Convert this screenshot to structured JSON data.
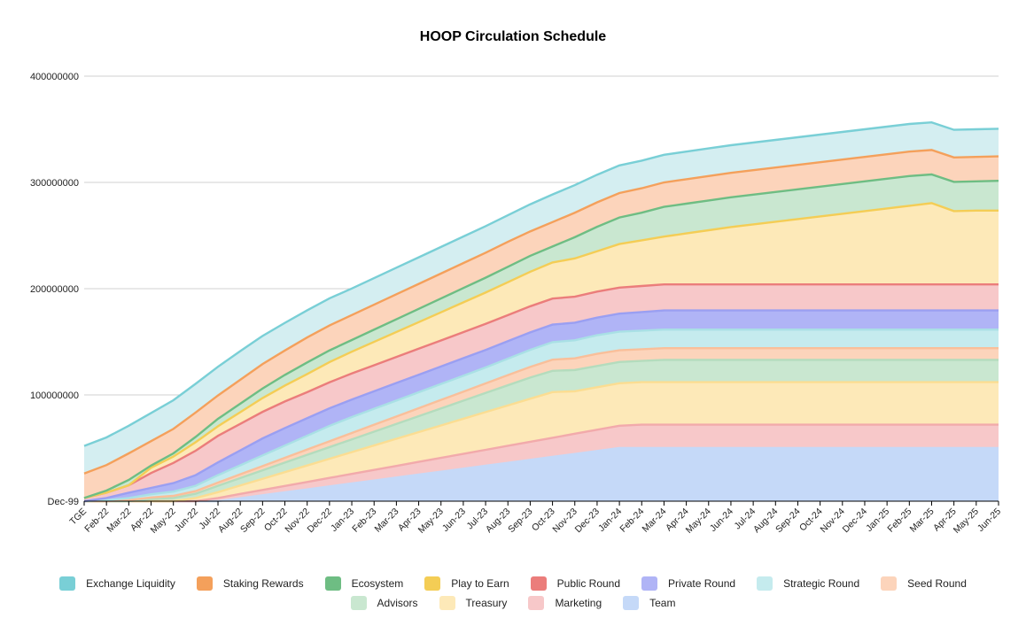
{
  "chart_data": {
    "type": "area",
    "stacked": true,
    "title": "HOOP Circulation Schedule",
    "xlabel": "",
    "ylabel": "",
    "ylim": [
      0,
      400000000
    ],
    "yticks": [
      "Dec-99",
      "100000000",
      "200000000",
      "300000000",
      "400000000"
    ],
    "grid": true,
    "legend_position": "bottom",
    "categories": [
      "TGE",
      "Feb-22",
      "Mar-22",
      "Apr-22",
      "May-22",
      "Jun-22",
      "Jul-22",
      "Aug-22",
      "Sep-22",
      "Oct-22",
      "Nov-22",
      "Dec-22",
      "Jan-23",
      "Feb-23",
      "Mar-23",
      "Apr-23",
      "May-23",
      "Jun-23",
      "Jul-23",
      "Aug-23",
      "Sep-23",
      "Oct-23",
      "Nov-23",
      "Dec-23",
      "Jan-24",
      "Feb-24",
      "Mar-24",
      "Apr-24",
      "May-24",
      "Jun-24",
      "Jul-24",
      "Aug-24",
      "Sep-24",
      "Oct-24",
      "Nov-24",
      "Dec-24",
      "Jan-25",
      "Feb-25",
      "Mar-25",
      "Apr-25",
      "May-25",
      "Jun-25"
    ],
    "series": [
      {
        "name": "Team",
        "color": "#c5d9f8",
        "line": "#c5d9f8",
        "values": [
          0,
          0,
          0,
          0,
          0,
          0,
          0,
          2778000,
          5556000,
          8333000,
          11111000,
          13889000,
          16667000,
          19444000,
          22222000,
          25000000,
          27778000,
          30556000,
          33333000,
          36111000,
          38889000,
          41667000,
          44444000,
          47222000,
          50000000,
          50000000,
          50000000,
          50000000,
          50000000,
          50000000,
          50000000,
          50000000,
          50000000,
          50000000,
          50000000,
          50000000,
          50000000,
          50000000,
          50000000,
          50000000,
          50000000,
          50000000
        ]
      },
      {
        "name": "Marketing",
        "color": "#f7c8c9",
        "line": "#f2aaab",
        "values": [
          0,
          0,
          0,
          0,
          0,
          0,
          3000000,
          4000000,
          5000000,
          6000000,
          7000000,
          8000000,
          9000000,
          10000000,
          11000000,
          12000000,
          13000000,
          14000000,
          15000000,
          16000000,
          17000000,
          18000000,
          19000000,
          20000000,
          21000000,
          22000000,
          22000000,
          22000000,
          22000000,
          22000000,
          22000000,
          22000000,
          22000000,
          22000000,
          22000000,
          22000000,
          22000000,
          22000000,
          22000000,
          22000000,
          22000000,
          22000000
        ]
      },
      {
        "name": "Treasury",
        "color": "#fde9b8",
        "line": "#fbdd92",
        "values": [
          0,
          0,
          0,
          0,
          0,
          3000000,
          5500000,
          8000000,
          10500000,
          13000000,
          15500000,
          18000000,
          20500000,
          23000000,
          25500000,
          28000000,
          30500000,
          33000000,
          35500000,
          38000000,
          40500000,
          43000000,
          40000000,
          40000000,
          40000000,
          40000000,
          40000000,
          40000000,
          40000000,
          40000000,
          40000000,
          40000000,
          40000000,
          40000000,
          40000000,
          40000000,
          40000000,
          40000000,
          40000000,
          40000000,
          40000000,
          40000000
        ]
      },
      {
        "name": "Advisors",
        "color": "#c9e7d0",
        "line": "#b4dcbd",
        "values": [
          0,
          0,
          0,
          2000000,
          3000000,
          4000000,
          6000000,
          7000000,
          8000000,
          9000000,
          10000000,
          11000000,
          12000000,
          13000000,
          14000000,
          15000000,
          16000000,
          17000000,
          18000000,
          19000000,
          20000000,
          20000000,
          20000000,
          20000000,
          20000000,
          20000000,
          21000000,
          21000000,
          21000000,
          21000000,
          21000000,
          21000000,
          21000000,
          21000000,
          21000000,
          21000000,
          21000000,
          21000000,
          21000000,
          21000000,
          21000000,
          21000000
        ]
      },
      {
        "name": "Seed Round",
        "color": "#fcd4bb",
        "line": "#f9bf9a",
        "values": [
          0,
          0,
          1000000,
          1500000,
          2000000,
          2500000,
          3000000,
          3500000,
          4000000,
          4500000,
          5000000,
          5500000,
          6000000,
          6500000,
          7000000,
          7500000,
          8000000,
          8500000,
          9000000,
          9500000,
          10000000,
          10500000,
          11000000,
          11500000,
          11000000,
          11000000,
          11000000,
          11000000,
          11000000,
          11000000,
          11000000,
          11000000,
          11000000,
          11000000,
          11000000,
          11000000,
          11000000,
          11000000,
          11000000,
          11000000,
          11000000,
          11000000
        ]
      },
      {
        "name": "Strategic Round",
        "color": "#c5ebee",
        "line": "#a9e0e5",
        "values": [
          0,
          1000000,
          2000000,
          3000000,
          4000000,
          5000000,
          7000000,
          8500000,
          10000000,
          11500000,
          13000000,
          14500000,
          15000000,
          15000000,
          15000000,
          15000000,
          15000000,
          15000000,
          15000000,
          15500000,
          16000000,
          16500000,
          17000000,
          17500000,
          17500000,
          17500000,
          17500000,
          17500000,
          17500000,
          17500000,
          17500000,
          17500000,
          17500000,
          17500000,
          17500000,
          17500000,
          17500000,
          17500000,
          17500000,
          17500000,
          17500000,
          17500000
        ]
      },
      {
        "name": "Private Round",
        "color": "#b0b4f6",
        "line": "#9a9ff2",
        "values": [
          0,
          2000000,
          5000000,
          6000000,
          8000000,
          10000000,
          12000000,
          14000000,
          16000000,
          16500000,
          16500000,
          16500000,
          16500000,
          16500000,
          16500000,
          16500000,
          16500000,
          16500000,
          16500000,
          16500000,
          16500000,
          16500000,
          16500000,
          16500000,
          17000000,
          17500000,
          18000000,
          18000000,
          18000000,
          18000000,
          18000000,
          18000000,
          18000000,
          18000000,
          18000000,
          18000000,
          18000000,
          18000000,
          18000000,
          18000000,
          18000000,
          18000000
        ]
      },
      {
        "name": "Public Round",
        "color": "#f7c8c9",
        "line": "#eb7d7b",
        "values": [
          3000000,
          5000000,
          7000000,
          14000000,
          19000000,
          23000000,
          25000000,
          25000000,
          25000000,
          25000000,
          24500000,
          24500000,
          24500000,
          24500000,
          24500000,
          24500000,
          24500000,
          24500000,
          24500000,
          24500000,
          24500000,
          24500000,
          24500000,
          24500000,
          24500000,
          24500000,
          24500000,
          24500000,
          24500000,
          24500000,
          24500000,
          24500000,
          24500000,
          24500000,
          24500000,
          24500000,
          24500000,
          24500000,
          24500000,
          24500000,
          24500000,
          24500000
        ]
      },
      {
        "name": "Play to Earn",
        "color": "#fde9b8",
        "line": "#f4cd55",
        "values": [
          0,
          0,
          0,
          5000000,
          6000000,
          8000000,
          9000000,
          11000000,
          13000000,
          15000000,
          17000000,
          19000000,
          20500000,
          22000000,
          23500000,
          25000000,
          26500000,
          28000000,
          29500000,
          31000000,
          32500000,
          34000000,
          36000000,
          38000000,
          41000000,
          43000000,
          45000000,
          48000000,
          51000000,
          54000000,
          56500000,
          59000000,
          61500000,
          64000000,
          66500000,
          69000000,
          71500000,
          74000000,
          76500000,
          69000000,
          69500000,
          69500000
        ]
      },
      {
        "name": "Ecosystem",
        "color": "#c9e7d0",
        "line": "#6ebd83",
        "values": [
          0,
          2000000,
          5000000,
          2000000,
          3000000,
          5000000,
          7000000,
          8000000,
          9000000,
          10000000,
          11000000,
          11000000,
          11000000,
          11500000,
          12000000,
          12500000,
          13000000,
          13500000,
          14000000,
          14500000,
          15000000,
          15000000,
          20000000,
          23000000,
          25000000,
          26000000,
          28000000,
          28000000,
          28000000,
          28000000,
          28000000,
          28000000,
          28000000,
          28000000,
          28000000,
          28000000,
          28000000,
          28000000,
          27000000,
          27500000,
          27500000,
          28000000
        ]
      },
      {
        "name": "Staking Rewards",
        "color": "#fcd4bb",
        "line": "#f4a05b",
        "values": [
          23000000,
          24000000,
          25000000,
          23000000,
          23000000,
          23000000,
          22000000,
          22500000,
          23000000,
          23000000,
          23500000,
          23500000,
          23500000,
          23500000,
          23500000,
          23500000,
          23500000,
          23500000,
          23500000,
          23500000,
          23000000,
          23000000,
          23000000,
          23000000,
          23000000,
          23000000,
          23000000,
          23000000,
          23000000,
          23000000,
          23000000,
          23000000,
          23000000,
          23000000,
          23000000,
          23000000,
          23000000,
          23000000,
          23000000,
          23000000,
          23000000,
          23000000
        ]
      },
      {
        "name": "Exchange Liquidity",
        "color": "#d4eef1",
        "line": "#79cfd6",
        "values": [
          26000000,
          26000000,
          26000000,
          26500000,
          27000000,
          27000000,
          27000000,
          27000000,
          26500000,
          26000000,
          25500000,
          25500000,
          25000000,
          25000000,
          25000000,
          25000000,
          25000000,
          25000000,
          25000000,
          25000000,
          25500000,
          26000000,
          26000000,
          26000000,
          26000000,
          26000000,
          26000000,
          26000000,
          26000000,
          26000000,
          26000000,
          26000000,
          26000000,
          26000000,
          26000000,
          26000000,
          26000000,
          26000000,
          26000000,
          26000000,
          26000000,
          26000000
        ]
      }
    ]
  },
  "legend": {
    "row1": [
      {
        "label": "Exchange Liquidity",
        "color": "#79cfd6"
      },
      {
        "label": "Staking Rewards",
        "color": "#f4a05b"
      },
      {
        "label": "Ecosystem",
        "color": "#6ebd83"
      },
      {
        "label": "Play to Earn",
        "color": "#f4cd55"
      },
      {
        "label": "Public Round",
        "color": "#eb7d7b"
      },
      {
        "label": "Private Round",
        "color": "#b0b4f6"
      },
      {
        "label": "Strategic Round",
        "color": "#c5ebee"
      },
      {
        "label": "Seed Round",
        "color": "#fcd4bb"
      }
    ],
    "row2": [
      {
        "label": "Advisors",
        "color": "#c9e7d0"
      },
      {
        "label": "Treasury",
        "color": "#fde9b8"
      },
      {
        "label": "Marketing",
        "color": "#f7c8c9"
      },
      {
        "label": "Team",
        "color": "#c5d9f8"
      }
    ]
  }
}
